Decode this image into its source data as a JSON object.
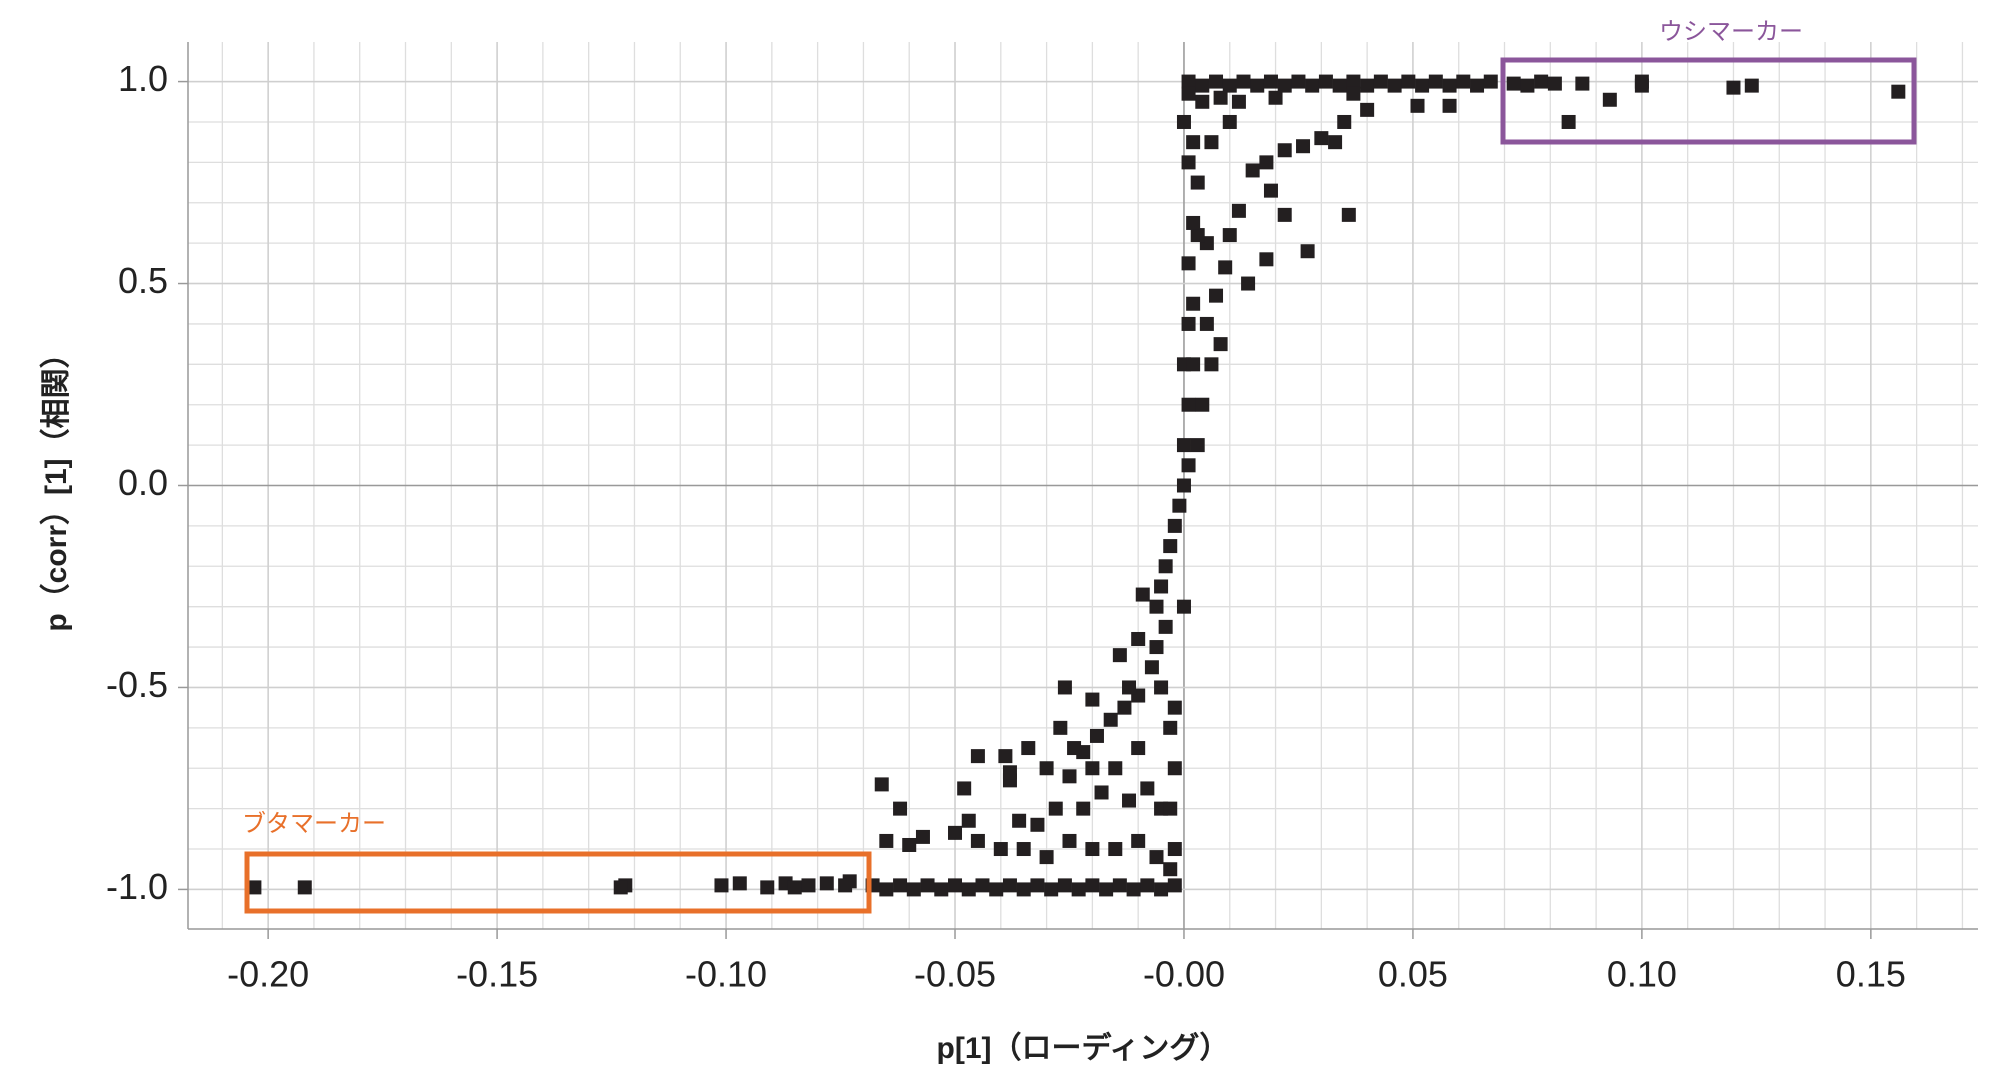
{
  "chart_data": {
    "type": "scatter",
    "x_label": "p[1]（ローディング）",
    "y_label": "p（corr）[1]（相関）",
    "annotations": [
      "ウシマーカー",
      "ブタマーカー"
    ],
    "color": "#231f20",
    "grid": true,
    "xlim": [
      -0.2175,
      0.1734
    ],
    "ylim": [
      -1.098,
      1.098
    ],
    "xticks": [
      {
        "value": -0.2,
        "label": "-0.20"
      },
      {
        "value": -0.15,
        "label": "-0.15"
      },
      {
        "value": -0.1,
        "label": "-0.10"
      },
      {
        "value": -0.05,
        "label": "-0.05"
      },
      {
        "value": 0,
        "label": "-0.00"
      },
      {
        "value": 0.05,
        "label": "0.05"
      },
      {
        "value": 0.1,
        "label": "0.10"
      },
      {
        "value": 0.15,
        "label": "0.15"
      }
    ],
    "yticks": [
      {
        "value": -1,
        "label": "-1.0"
      },
      -0.5,
      {
        "value": 0,
        "label": "0.0"
      },
      0.5,
      {
        "value": 1,
        "label": "1.0"
      }
    ],
    "x": [
      0.001,
      0.004,
      0.007,
      0.01,
      0.013,
      0.016,
      0.019,
      0.022,
      0.025,
      0.028,
      0.031,
      0.034,
      0.037,
      0.04,
      0.043,
      0.046,
      0.049,
      0.052,
      0.055,
      0.058,
      0.061,
      0.064,
      0.067,
      0.072,
      0.075,
      0.078,
      0.081,
      0.084,
      0.087,
      0.093,
      0.1,
      0.1,
      0.12,
      0.124,
      0.156,
      0.051,
      0.058,
      0.037,
      0.04,
      0.035,
      0.03,
      0.033,
      0.026,
      0.022,
      0.018,
      0.015,
      0.036,
      0.027,
      0.022,
      0.018,
      0.019,
      0.012,
      0.01,
      0.014,
      0.009,
      0.007,
      0.008,
      0.006,
      0.005,
      0.004,
      0.003,
      0.005,
      0.003,
      0.002,
      0.006,
      0.01,
      0.004,
      0.012,
      0.02,
      0.008,
      0.003,
      0.001,
      0.002,
      0,
      0.001,
      0,
      0,
      -0.001,
      -0.002,
      -0.003,
      -0.004,
      -0.005,
      -0.006,
      -0.004,
      -0.006,
      -0.005,
      -0.007,
      -0.01,
      -0.009,
      -0.01,
      -0.012,
      -0.014,
      -0.013,
      -0.016,
      -0.02,
      -0.019,
      -0.022,
      -0.026,
      -0.027,
      -0.024,
      -0.02,
      -0.015,
      -0.01,
      -0.008,
      -0.005,
      -0.012,
      -0.018,
      -0.025,
      -0.03,
      -0.034,
      -0.038,
      -0.045,
      -0.048,
      -0.039,
      -0.038,
      -0.022,
      -0.028,
      -0.032,
      -0.036,
      -0.047,
      -0.05,
      -0.057,
      -0.062,
      -0.066,
      -0.065,
      -0.06,
      -0.045,
      -0.04,
      -0.035,
      -0.03,
      -0.025,
      -0.02,
      -0.015,
      -0.01,
      -0.006,
      -0.003,
      -0.002,
      -0.003,
      -0.002,
      -0.003,
      -0.002,
      0,
      0.001,
      0.002,
      0.001,
      0.002,
      0.001,
      0,
      0.001,
      -0.068,
      -0.065,
      -0.062,
      -0.059,
      -0.056,
      -0.053,
      -0.05,
      -0.047,
      -0.044,
      -0.041,
      -0.038,
      -0.035,
      -0.032,
      -0.029,
      -0.026,
      -0.023,
      -0.02,
      -0.017,
      -0.014,
      -0.011,
      -0.008,
      -0.005,
      -0.002,
      -0.203,
      -0.192,
      -0.122,
      -0.123,
      -0.101,
      -0.097,
      -0.091,
      -0.087,
      -0.085,
      -0.082,
      -0.078,
      -0.073,
      -0.074
    ],
    "values": [
      1.0,
      0.99,
      1.0,
      0.99,
      1.0,
      0.99,
      1.0,
      0.99,
      1.0,
      0.99,
      1.0,
      0.99,
      1.0,
      0.99,
      1.0,
      0.99,
      1.0,
      0.99,
      1.0,
      0.99,
      1.0,
      0.99,
      1.0,
      0.995,
      0.99,
      1.0,
      0.995,
      0.9,
      0.995,
      0.955,
      0.99,
      1.0,
      0.985,
      0.99,
      0.975,
      0.94,
      0.94,
      0.97,
      0.93,
      0.9,
      0.86,
      0.85,
      0.84,
      0.83,
      0.8,
      0.78,
      0.67,
      0.58,
      0.67,
      0.56,
      0.73,
      0.68,
      0.62,
      0.5,
      0.54,
      0.47,
      0.35,
      0.3,
      0.4,
      0.2,
      0.1,
      0.6,
      0.75,
      0.85,
      0.85,
      0.9,
      0.95,
      0.95,
      0.96,
      0.96,
      0.62,
      0.55,
      0.45,
      0.3,
      0.2,
      0.1,
      0,
      -0.05,
      -0.1,
      -0.15,
      -0.2,
      -0.25,
      -0.3,
      -0.35,
      -0.4,
      -0.5,
      -0.45,
      -0.38,
      -0.27,
      -0.52,
      -0.5,
      -0.42,
      -0.55,
      -0.58,
      -0.53,
      -0.62,
      -0.66,
      -0.5,
      -0.6,
      -0.65,
      -0.7,
      -0.7,
      -0.65,
      -0.75,
      -0.8,
      -0.78,
      -0.76,
      -0.72,
      -0.7,
      -0.65,
      -0.73,
      -0.67,
      -0.75,
      -0.67,
      -0.71,
      -0.8,
      -0.8,
      -0.84,
      -0.83,
      -0.83,
      -0.86,
      -0.87,
      -0.8,
      -0.74,
      -0.88,
      -0.89,
      -0.88,
      -0.9,
      -0.9,
      -0.92,
      -0.88,
      -0.9,
      -0.9,
      -0.88,
      -0.92,
      -0.95,
      -0.9,
      -0.8,
      -0.7,
      -0.6,
      -0.55,
      -0.3,
      0.05,
      0.3,
      0.4,
      0.65,
      0.8,
      0.9,
      0.97,
      -0.99,
      -1.0,
      -0.99,
      -1.0,
      -0.99,
      -1.0,
      -0.99,
      -1.0,
      -0.99,
      -1.0,
      -0.99,
      -1.0,
      -0.99,
      -1.0,
      -0.99,
      -1.0,
      -0.99,
      -1.0,
      -0.99,
      -1.0,
      -0.99,
      -1.0,
      -0.99,
      -0.995,
      -0.995,
      -0.99,
      -0.995,
      -0.99,
      -0.985,
      -0.995,
      -0.985,
      -0.995,
      -0.99,
      -0.985,
      -0.98,
      -0.99
    ]
  }
}
